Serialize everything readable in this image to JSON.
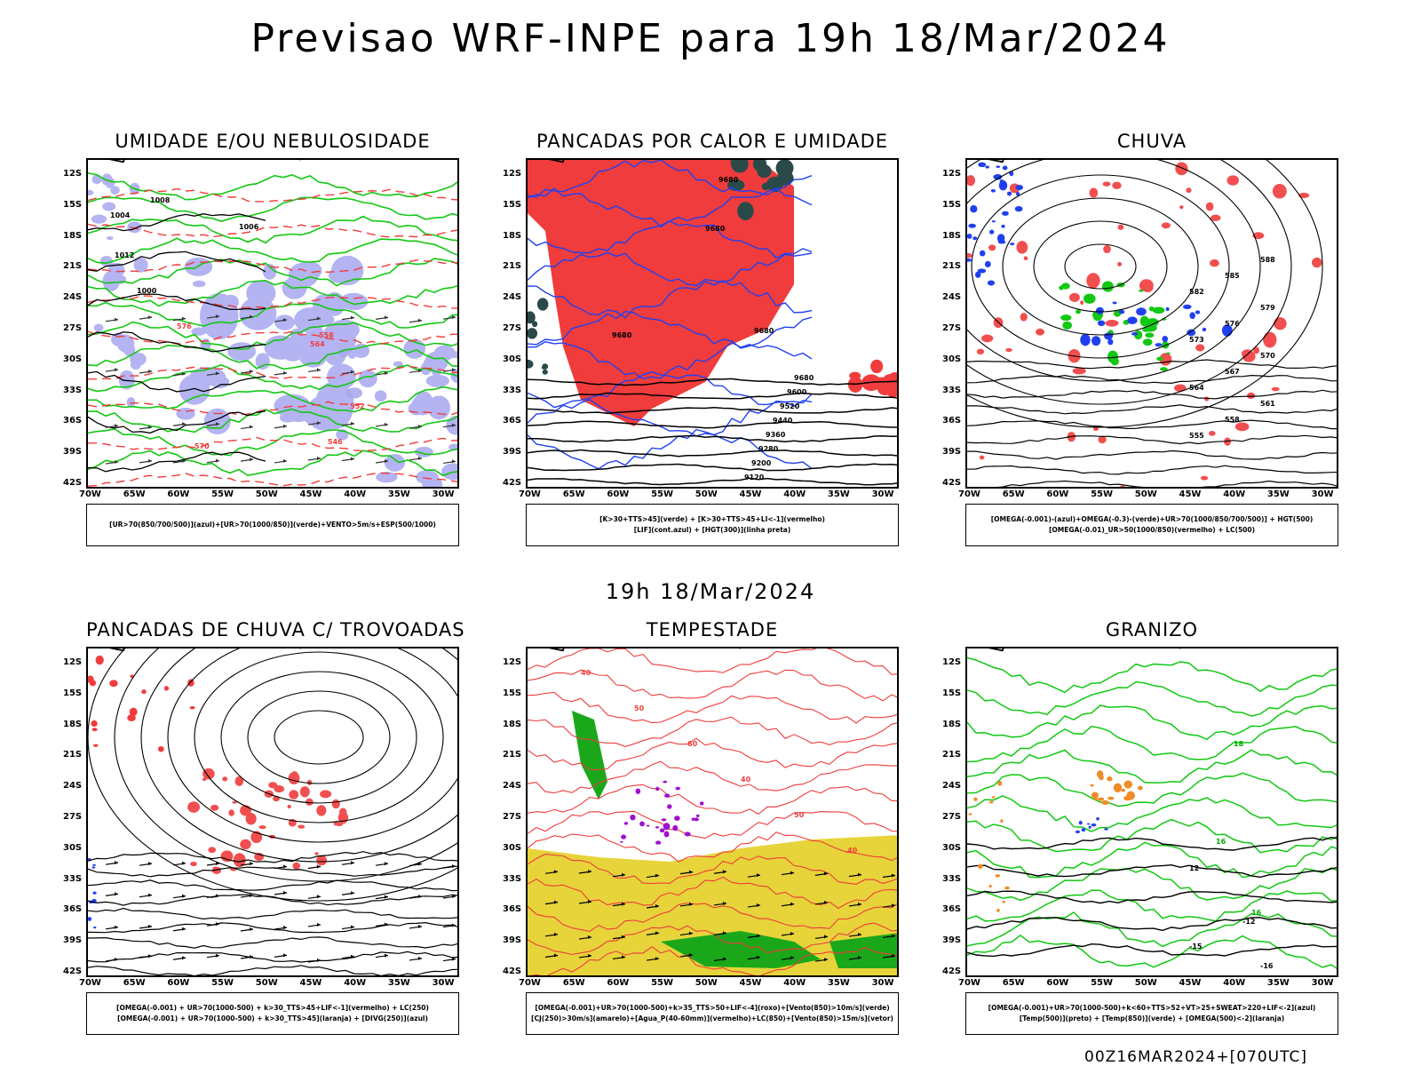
{
  "main_title": "Previsao WRF-INPE  para 19h 18/Mar/2024",
  "middle_title": "19h 18/Mar/2024",
  "footer": "00Z16MAR2024+[070UTC]",
  "lat_labels": [
    "12S",
    "15S",
    "18S",
    "21S",
    "24S",
    "27S",
    "30S",
    "33S",
    "36S",
    "39S",
    "42S"
  ],
  "lon_labels": [
    "70W",
    "65W",
    "60W",
    "55W",
    "50W",
    "45W",
    "40W",
    "35W",
    "30W"
  ],
  "colors": {
    "red": "#f03c3c",
    "green": "#12c812",
    "blue": "#2040f0",
    "lavender": "#a8a8f0",
    "yellow": "#e6d43a",
    "orange": "#f08c28",
    "purple": "#a010d0",
    "darkteal": "#2a4a4a"
  },
  "panels": [
    {
      "title": "UMIDADE E/OU NEBULOSIDADE",
      "legend": [
        "[UR>70(850/700/500)](azul)+[UR>70(1000/850)](verde)+VENTO>5m/s+ESP(500/1000)"
      ],
      "contour_labels": [
        "1004",
        "1008",
        "1012",
        "1006",
        "1000",
        "576",
        "570",
        "564",
        "558",
        "552",
        "546"
      ]
    },
    {
      "title": "PANCADAS POR CALOR E UMIDADE",
      "legend": [
        "[K>30+TTS>45](verde) + [K>30+TTS>45+LI<-1](vermelho)",
        "[LIF](cont.azul) + [HGT(300)](linha preta)"
      ],
      "contour_labels": [
        "9680",
        "9600",
        "9520",
        "9440",
        "9360",
        "9280",
        "9200",
        "9120"
      ]
    },
    {
      "title": "CHUVA",
      "legend": [
        "[OMEGA(-0.001)-(azul)+OMEGA(-0.3)-(verde)+UR>70(1000/850/700/500)] + HGT(500)",
        "[OMEGA(-0.01)_UR>50(1000/850)(vermelho) + LC(500)"
      ],
      "contour_labels": [
        "588",
        "585",
        "582",
        "579",
        "576",
        "573",
        "570",
        "567",
        "564",
        "561",
        "558",
        "555"
      ]
    },
    {
      "title": "PANCADAS DE CHUVA C/ TROVOADAS",
      "legend": [
        "[OMEGA(-0.001) + UR>70(1000-500) + k>30_TTS>45+LIF<-1](vermelho) + LC(250)",
        "[OMEGA(-0.001) + UR>70(1000-500) + k>30_TTS>45](laranja) + [DIVG(250)](azul)"
      ],
      "contour_labels": []
    },
    {
      "title": "TEMPESTADE",
      "legend": [
        "[OMEGA(-0.001)+UR>70(1000-500)+k>35_TTS>50+LIF<-4](roxo)+[Vento(850)>10m/s](verde)",
        "[CJ(250)>30m/s](amarelo)+[Agua_P(40-60mm)](vermelho)+LC(850)+[Vento(850)>15m/s](vetor)"
      ],
      "contour_labels": [
        "40",
        "50",
        "60",
        "40",
        "50",
        "40"
      ]
    },
    {
      "title": "GRANIZO",
      "legend": [
        "[OMEGA(-0.001)+UR>70(1000-500)+k<60+TTS>52+VT>25+SWEAT>220+LIF<-2](azul)",
        "[Temp(500)](preto) + [Temp(850)](verde) + [OMEGA(500)<-2](laranja)"
      ],
      "contour_labels": [
        "16",
        "12",
        "-12",
        "-15",
        "-16",
        "18",
        "16"
      ]
    }
  ]
}
